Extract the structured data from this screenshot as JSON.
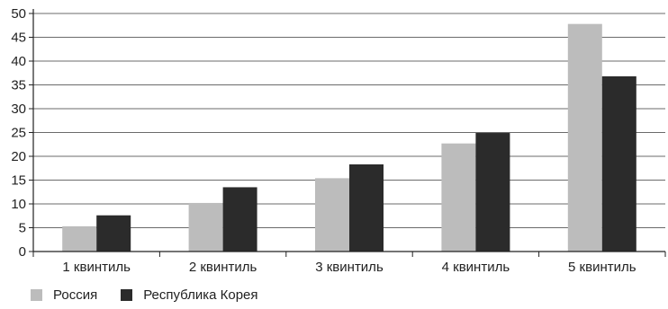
{
  "chart_data": {
    "type": "bar",
    "title": "",
    "xlabel": "",
    "ylabel": "",
    "categories": [
      "1 квинтиль",
      "2 квинтиль",
      "3 квинтиль",
      "4 квинтиль",
      "5 квинтиль"
    ],
    "series": [
      {
        "name": "Россия",
        "color": "#bcbcbc",
        "values": [
          5.3,
          10.2,
          15.4,
          22.7,
          47.8
        ]
      },
      {
        "name": "Республика Корея",
        "color": "#2b2b2b",
        "values": [
          7.6,
          13.5,
          18.3,
          24.9,
          36.8
        ]
      }
    ],
    "ylim": [
      0,
      50
    ],
    "yticks": [
      0,
      5,
      10,
      15,
      20,
      25,
      30,
      35,
      40,
      45,
      50
    ],
    "grid": true,
    "legend_position": "bottom-left"
  }
}
